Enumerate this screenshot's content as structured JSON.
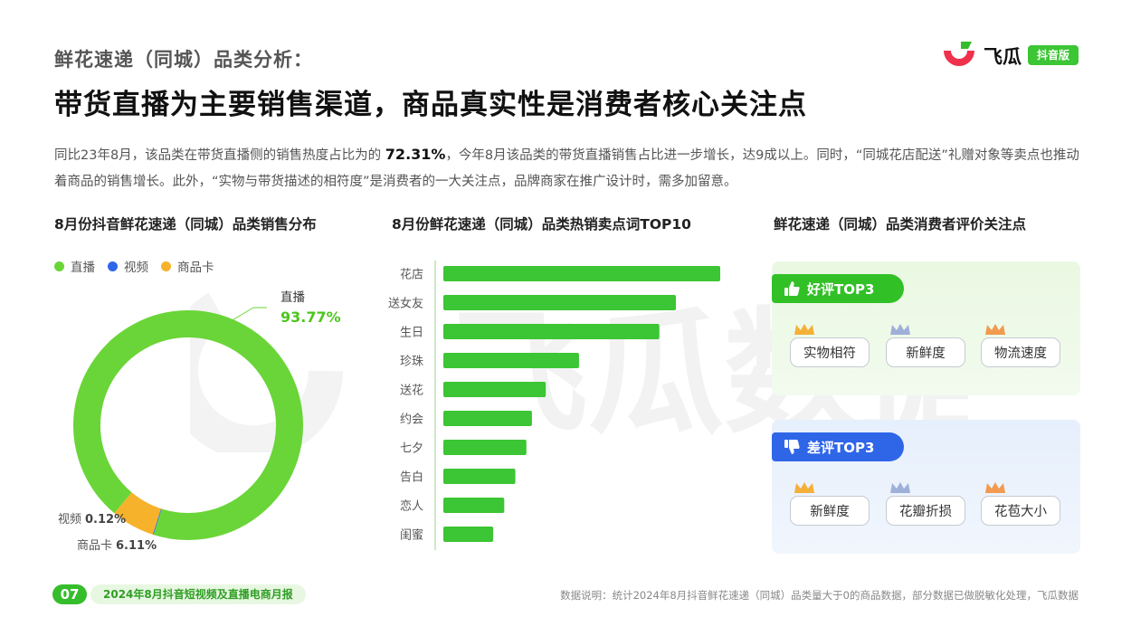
{
  "header": {
    "kicker": "鲜花速递（同城）品类分析：",
    "headline": "带货直播为主要销售渠道，商品真实性是消费者核心关注点",
    "summary_part1": "同比23年8月，该品类在带货直播侧的销售热度占比为的 ",
    "summary_highlight": "72.31%",
    "summary_part2": "，今年8月该品类的带货直播销售占比进一步增长，达9成以上。同时，“同城花店配送”礼赠对象等卖点也推动着商品的销售增长。此外，“实物与带货描述的相符度”是消费者的一大关注点，品牌商家在推广设计时，需多加留意。"
  },
  "logo": {
    "text": "飞瓜",
    "badge": "抖音版",
    "watermark": "飞瓜数据"
  },
  "colors": {
    "green": "#6ad538",
    "blue": "#2f66e8",
    "orange": "#f7b22c",
    "brand_green": "#36bd2b",
    "bar_green": "#3cc534"
  },
  "chart_data": [
    {
      "type": "pie",
      "title": "8月份抖音鲜花速递（同城）品类销售分布",
      "legend_position": "top-left",
      "series": [
        {
          "name": "直播",
          "value": 93.77,
          "label": "93.77%",
          "color": "#6ad538"
        },
        {
          "name": "视频",
          "value": 0.12,
          "label": "0.12%",
          "color": "#2f66e8"
        },
        {
          "name": "商品卡",
          "value": 6.11,
          "label": "6.11%",
          "color": "#f7b22c"
        }
      ]
    },
    {
      "type": "bar",
      "orientation": "horizontal",
      "title": "8月份鲜花速递（同城）品类热销卖点词TOP10",
      "categories": [
        "花店",
        "送女友",
        "生日",
        "珍珠",
        "送花",
        "约会",
        "七夕",
        "告白",
        "恋人",
        "闺蜜"
      ],
      "values": [
        100,
        84,
        78,
        49,
        37,
        32,
        30,
        26,
        22,
        18
      ],
      "xlim": [
        0,
        100
      ],
      "grid": false
    }
  ],
  "reviews": {
    "title": "鲜花速递（同城）品类消费者评价关注点",
    "good": {
      "label": "好评TOP3",
      "items": [
        "实物相符",
        "新鲜度",
        "物流速度"
      ]
    },
    "bad": {
      "label": "差评TOP3",
      "items": [
        "新鲜度",
        "花瓣折损",
        "花苞大小"
      ]
    }
  },
  "footer": {
    "page_number": "07",
    "report_title": "2024年8月抖音短视频及直播电商月报",
    "note": "数据说明：统计2024年8月抖音鲜花速递（同城）品类量大于0的商品数据，部分数据已做脱敏化处理，飞瓜数据"
  }
}
